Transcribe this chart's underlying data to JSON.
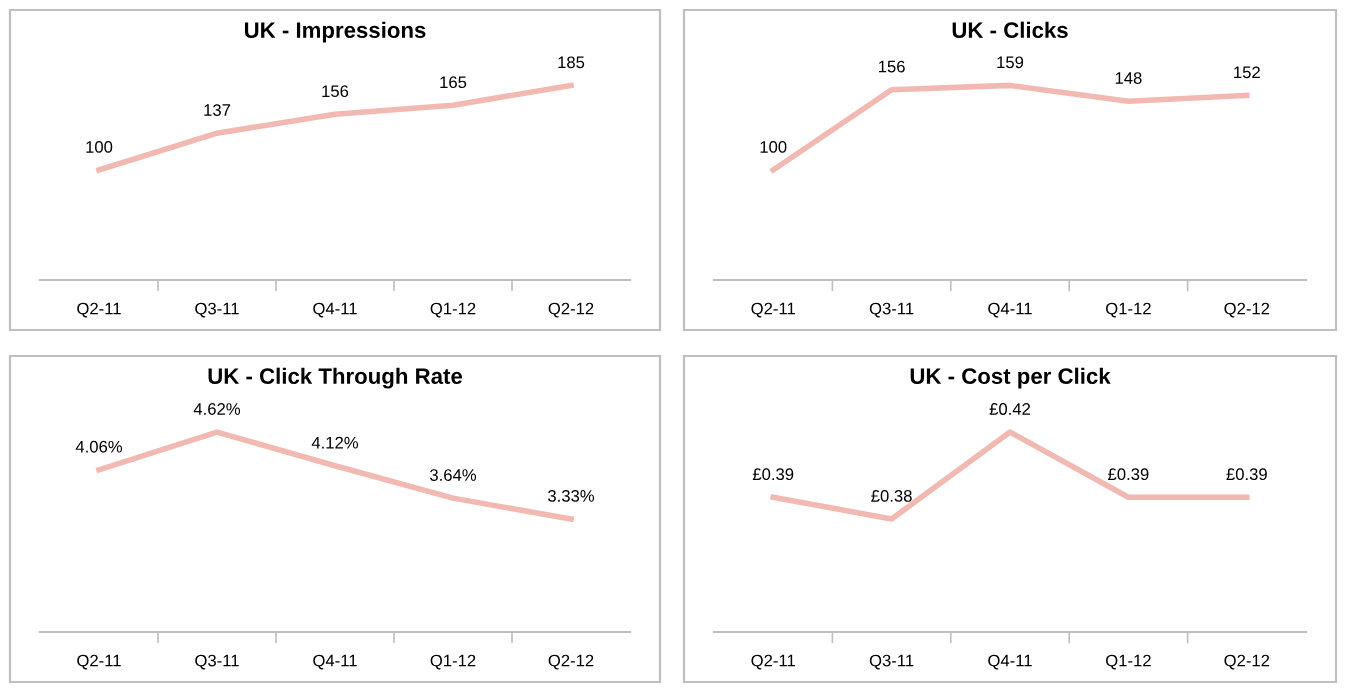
{
  "chart_data": [
    {
      "type": "line",
      "title": "UK - Impressions",
      "categories": [
        "Q2-11",
        "Q3-11",
        "Q4-11",
        "Q1-12",
        "Q2-12"
      ],
      "series": [
        {
          "color": "#f2b8b2",
          "values": [
            100,
            137,
            156,
            165,
            185
          ]
        }
      ],
      "data_labels": true,
      "grid": false,
      "legend": false,
      "marker": "none",
      "tick_labels": "x"
    },
    {
      "type": "line",
      "title": "UK - Clicks",
      "categories": [
        "Q2-11",
        "Q3-11",
        "Q4-11",
        "Q1-12",
        "Q2-12"
      ],
      "series": [
        {
          "color": "#f2b8b2",
          "values": [
            100,
            156,
            159,
            148,
            152
          ]
        }
      ],
      "data_labels": true,
      "grid": false,
      "legend": false,
      "marker": "none",
      "tick_labels": "x"
    },
    {
      "type": "line",
      "title": "UK - Click Through Rate",
      "categories": [
        "Q2-11",
        "Q3-11",
        "Q4-11",
        "Q1-12",
        "Q2-12"
      ],
      "series": [
        {
          "color": "#f2b8b2",
          "values": [
            4.06,
            4.62,
            4.12,
            3.64,
            3.33
          ],
          "value_labels": [
            "4.06%",
            "4.62%",
            "4.12%",
            "3.64%",
            "3.33%"
          ]
        }
      ],
      "grid": false,
      "legend": false,
      "marker": "none",
      "tick_labels": "x"
    },
    {
      "type": "line",
      "title": "UK - Cost per Click",
      "categories": [
        "Q2-11",
        "Q3-11",
        "Q4-11",
        "Q1-12",
        "Q2-12"
      ],
      "series": [
        {
          "color": "#f2b8b2",
          "values": [
            0.39,
            0.38,
            0.42,
            0.39,
            0.39
          ],
          "value_labels": [
            "£0.39",
            "£0.38",
            "£0.42",
            "£0.39",
            "£0.39"
          ]
        }
      ],
      "grid": false,
      "legend": false,
      "marker": "none",
      "tick_labels": "x"
    }
  ]
}
